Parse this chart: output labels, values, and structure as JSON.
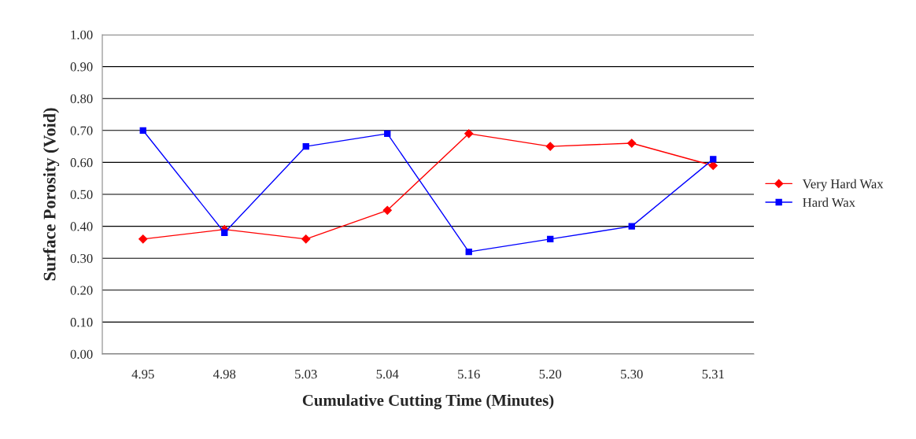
{
  "chart_data": {
    "type": "line",
    "xlabel": "Cumulative Cutting Time (Minutes)",
    "ylabel": "Surface Porosity (Void)",
    "categories": [
      "4.95",
      "4.98",
      "5.03",
      "5.04",
      "5.16",
      "5.20",
      "5.30",
      "5.31"
    ],
    "series": [
      {
        "name": "Very Hard Wax",
        "color": "#ff0000",
        "marker": "diamond",
        "values": [
          0.36,
          0.39,
          0.36,
          0.45,
          0.69,
          0.65,
          0.66,
          0.59
        ]
      },
      {
        "name": "Hard Wax",
        "color": "#0000ff",
        "marker": "square",
        "values": [
          0.7,
          0.38,
          0.65,
          0.69,
          0.32,
          0.36,
          0.4,
          0.61
        ]
      }
    ],
    "ylim": [
      0,
      1
    ],
    "yticks": [
      {
        "value": 0,
        "label": "0.00"
      },
      {
        "value": 0.1,
        "label": "0.10"
      },
      {
        "value": 0.2,
        "label": "0.20"
      },
      {
        "value": 0.3,
        "label": "0.30"
      },
      {
        "value": 0.4,
        "label": "0.40"
      },
      {
        "value": 0.5,
        "label": "0.50"
      },
      {
        "value": 0.6,
        "label": "0.60"
      },
      {
        "value": 0.7,
        "label": "0.70"
      },
      {
        "value": 0.8,
        "label": "0.80"
      },
      {
        "value": 0.9,
        "label": "0.90"
      },
      {
        "value": 1,
        "label": "1.00"
      }
    ],
    "grid": "y",
    "legend": "right"
  }
}
